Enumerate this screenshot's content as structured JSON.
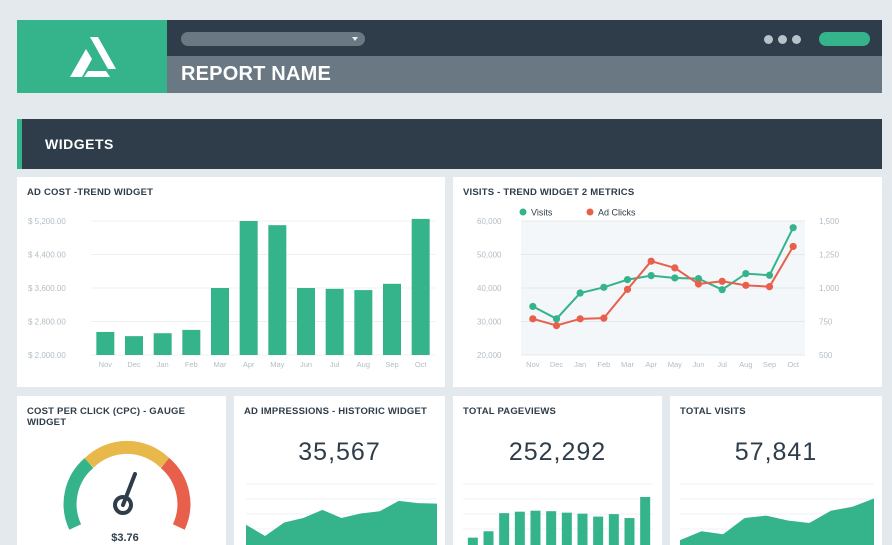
{
  "header": {
    "report_name": "REPORT NAME"
  },
  "section": {
    "title": "WIDGETS"
  },
  "widgets": {
    "ad_cost": {
      "title": "AD COST -TREND WIDGET"
    },
    "visits": {
      "title": "VISITS - TREND WIDGET 2 METRICS"
    },
    "cpc": {
      "title": "COST PER CLICK (CPC) - GAUGE WIDGET",
      "value": "$3.76"
    },
    "impressions": {
      "title": "AD IMPRESSIONS - HISTORIC WIDGET",
      "value": "35,567"
    },
    "pageviews": {
      "title": "TOTAL PAGEVIEWS",
      "value": "252,292"
    },
    "total_visits": {
      "title": "TOTAL VISITS",
      "value": "57,841"
    }
  },
  "colors": {
    "accent": "#35b38a",
    "dark": "#2f3d4a",
    "red": "#e8604c",
    "yellow": "#e8b94a"
  },
  "chart_data": [
    {
      "type": "bar",
      "categories": [
        "Nov",
        "Dec",
        "Jan",
        "Feb",
        "Mar",
        "Apr",
        "May",
        "Jun",
        "Jul",
        "Aug",
        "Sep",
        "Oct"
      ],
      "values": [
        2550,
        2450,
        2520,
        2600,
        3600,
        5200,
        5100,
        3600,
        3580,
        3550,
        3700,
        5250
      ],
      "y_tick_labels": [
        "$ 5,200.00",
        "$ 4,400.00",
        "$ 3,600.00",
        "$ 2,800.00",
        "$ 2,000.00"
      ],
      "y_ticks": [
        5200,
        4400,
        3600,
        2800,
        2000
      ],
      "ylim": [
        2000,
        5200
      ]
    },
    {
      "type": "line",
      "categories": [
        "Nov",
        "Dec",
        "Jan",
        "Feb",
        "Mar",
        "Apr",
        "May",
        "Jun",
        "Jul",
        "Aug",
        "Sep",
        "Oct"
      ],
      "series": [
        {
          "name": "Visits",
          "axis": "left",
          "values": [
            34500,
            30800,
            38500,
            40200,
            42500,
            43700,
            43000,
            42800,
            39500,
            44300,
            43800,
            58000
          ]
        },
        {
          "name": "Ad Clicks",
          "axis": "right",
          "values": [
            770,
            720,
            770,
            775,
            990,
            1200,
            1150,
            1030,
            1050,
            1020,
            1010,
            1310
          ]
        }
      ],
      "left_ticks": [
        60000,
        50000,
        40000,
        30000,
        20000
      ],
      "left_tick_labels": [
        "60,000",
        "50,000",
        "40,000",
        "30,000",
        "20,000"
      ],
      "right_ticks": [
        1500,
        1250,
        1000,
        750,
        500
      ],
      "right_tick_labels": [
        "1,500",
        "1,250",
        "1,000",
        "750",
        "500"
      ],
      "left_ylim": [
        20000,
        60000
      ],
      "right_ylim": [
        500,
        1500
      ],
      "legend": "top-left"
    },
    {
      "type": "area",
      "name": "impressions",
      "values": [
        0.45,
        0.2,
        0.5,
        0.6,
        0.78,
        0.6,
        0.7,
        0.75,
        0.98,
        0.93,
        0.92
      ]
    },
    {
      "type": "bar",
      "name": "pageviews",
      "values": [
        0.15,
        0.28,
        0.65,
        0.68,
        0.7,
        0.69,
        0.66,
        0.64,
        0.58,
        0.63,
        0.55,
        0.98
      ]
    },
    {
      "type": "area",
      "name": "total_visits",
      "values": [
        0.1,
        0.28,
        0.22,
        0.55,
        0.6,
        0.5,
        0.45,
        0.7,
        0.78,
        0.95
      ]
    }
  ]
}
